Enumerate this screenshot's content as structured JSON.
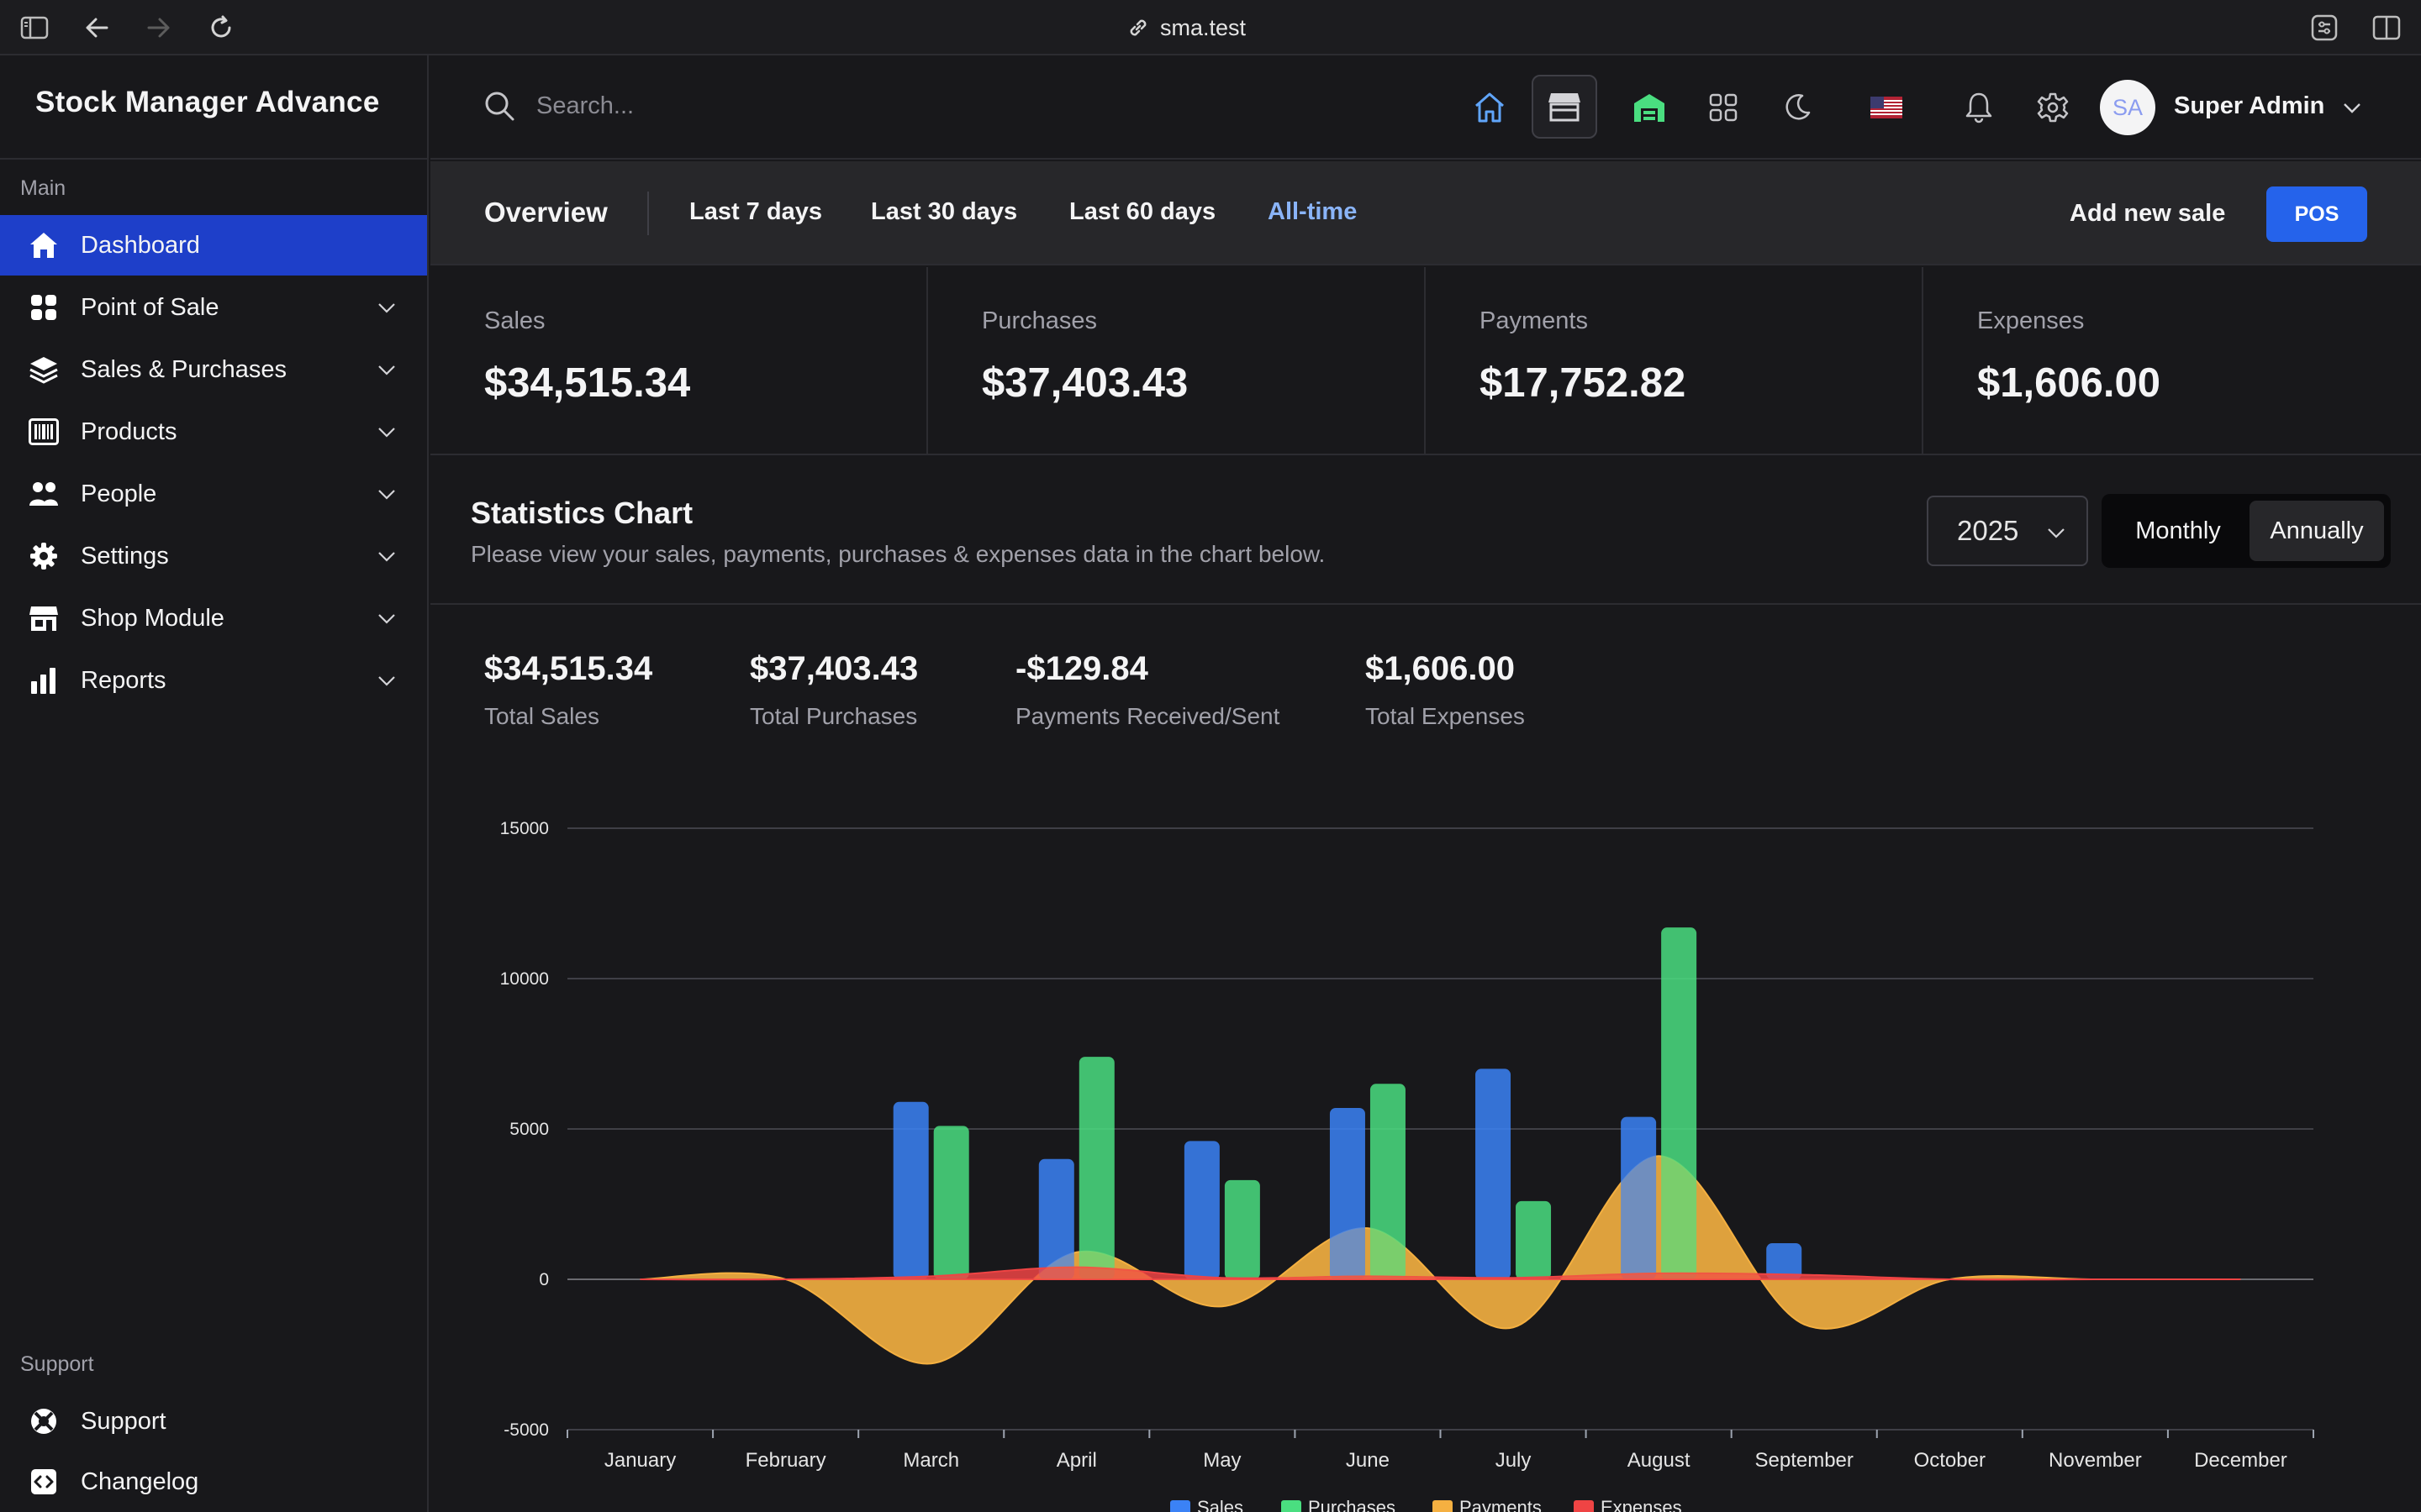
{
  "browser": {
    "url": "sma.test"
  },
  "brand": {
    "name": "Stock Manager Advance"
  },
  "sidebar": {
    "main_label": "Main",
    "items": [
      {
        "label": "Dashboard",
        "icon": "home-icon"
      },
      {
        "label": "Point of Sale",
        "icon": "grid-icon"
      },
      {
        "label": "Sales & Purchases",
        "icon": "layers-icon"
      },
      {
        "label": "Products",
        "icon": "barcode-icon"
      },
      {
        "label": "People",
        "icon": "users-icon"
      },
      {
        "label": "Settings",
        "icon": "gear-icon"
      },
      {
        "label": "Shop Module",
        "icon": "store-icon"
      },
      {
        "label": "Reports",
        "icon": "bar-chart-icon"
      }
    ],
    "support_label": "Support",
    "support_items": [
      {
        "label": "Support",
        "icon": "lifebuoy-icon"
      },
      {
        "label": "Changelog",
        "icon": "code-icon"
      }
    ]
  },
  "header": {
    "search_placeholder": "Search...",
    "user": {
      "initials": "SA",
      "name": "Super Admin"
    }
  },
  "overview": {
    "title": "Overview",
    "tabs": [
      "Last 7 days",
      "Last 30 days",
      "Last 60 days",
      "All-time"
    ],
    "active_tab": "All-time",
    "add_sale": "Add new sale",
    "pos": "POS"
  },
  "cards": [
    {
      "label": "Sales",
      "value": "$34,515.34"
    },
    {
      "label": "Purchases",
      "value": "$37,403.43"
    },
    {
      "label": "Payments",
      "value": "$17,752.82"
    },
    {
      "label": "Expenses",
      "value": "$1,606.00"
    }
  ],
  "statistics": {
    "title": "Statistics Chart",
    "subtitle": "Please view your sales, payments, purchases & expenses data in the chart below.",
    "year": "2025",
    "periods": [
      "Monthly",
      "Annually"
    ],
    "selected_period": "Annually",
    "totals": [
      {
        "value": "$34,515.34",
        "label": "Total Sales"
      },
      {
        "value": "$37,403.43",
        "label": "Total Purchases"
      },
      {
        "value": "-$129.84",
        "label": "Payments Received/Sent"
      },
      {
        "value": "$1,606.00",
        "label": "Total Expenses"
      }
    ]
  },
  "colors": {
    "accent": "#2563eb",
    "active_nav": "#1e3fc9",
    "sales": "#3b82f6",
    "purchases": "#4ade80",
    "payments": "#f5b041",
    "expenses": "#ef4444"
  },
  "chart_data": {
    "type": "bar",
    "title": "",
    "categories": [
      "January",
      "February",
      "March",
      "April",
      "May",
      "June",
      "July",
      "August",
      "September",
      "October",
      "November",
      "December"
    ],
    "series": [
      {
        "name": "Sales",
        "kind": "bar",
        "values": [
          0,
          0,
          5900,
          4000,
          4600,
          5700,
          7000,
          5400,
          1200,
          0,
          0,
          0
        ]
      },
      {
        "name": "Purchases",
        "kind": "bar",
        "values": [
          0,
          0,
          5100,
          7400,
          3300,
          6500,
          2600,
          11700,
          0,
          0,
          0,
          0
        ]
      },
      {
        "name": "Payments",
        "kind": "area",
        "values": [
          0,
          0,
          -2800,
          900,
          -900,
          1700,
          -1600,
          4100,
          -1500,
          0,
          0,
          0
        ]
      },
      {
        "name": "Expenses",
        "kind": "area",
        "values": [
          0,
          0,
          100,
          400,
          50,
          100,
          50,
          200,
          150,
          0,
          0,
          0
        ]
      }
    ],
    "ylim": [
      -5000,
      15000
    ],
    "yticks": [
      15000,
      10000,
      5000,
      0,
      -5000
    ],
    "grid": true,
    "legend": "bottom"
  }
}
